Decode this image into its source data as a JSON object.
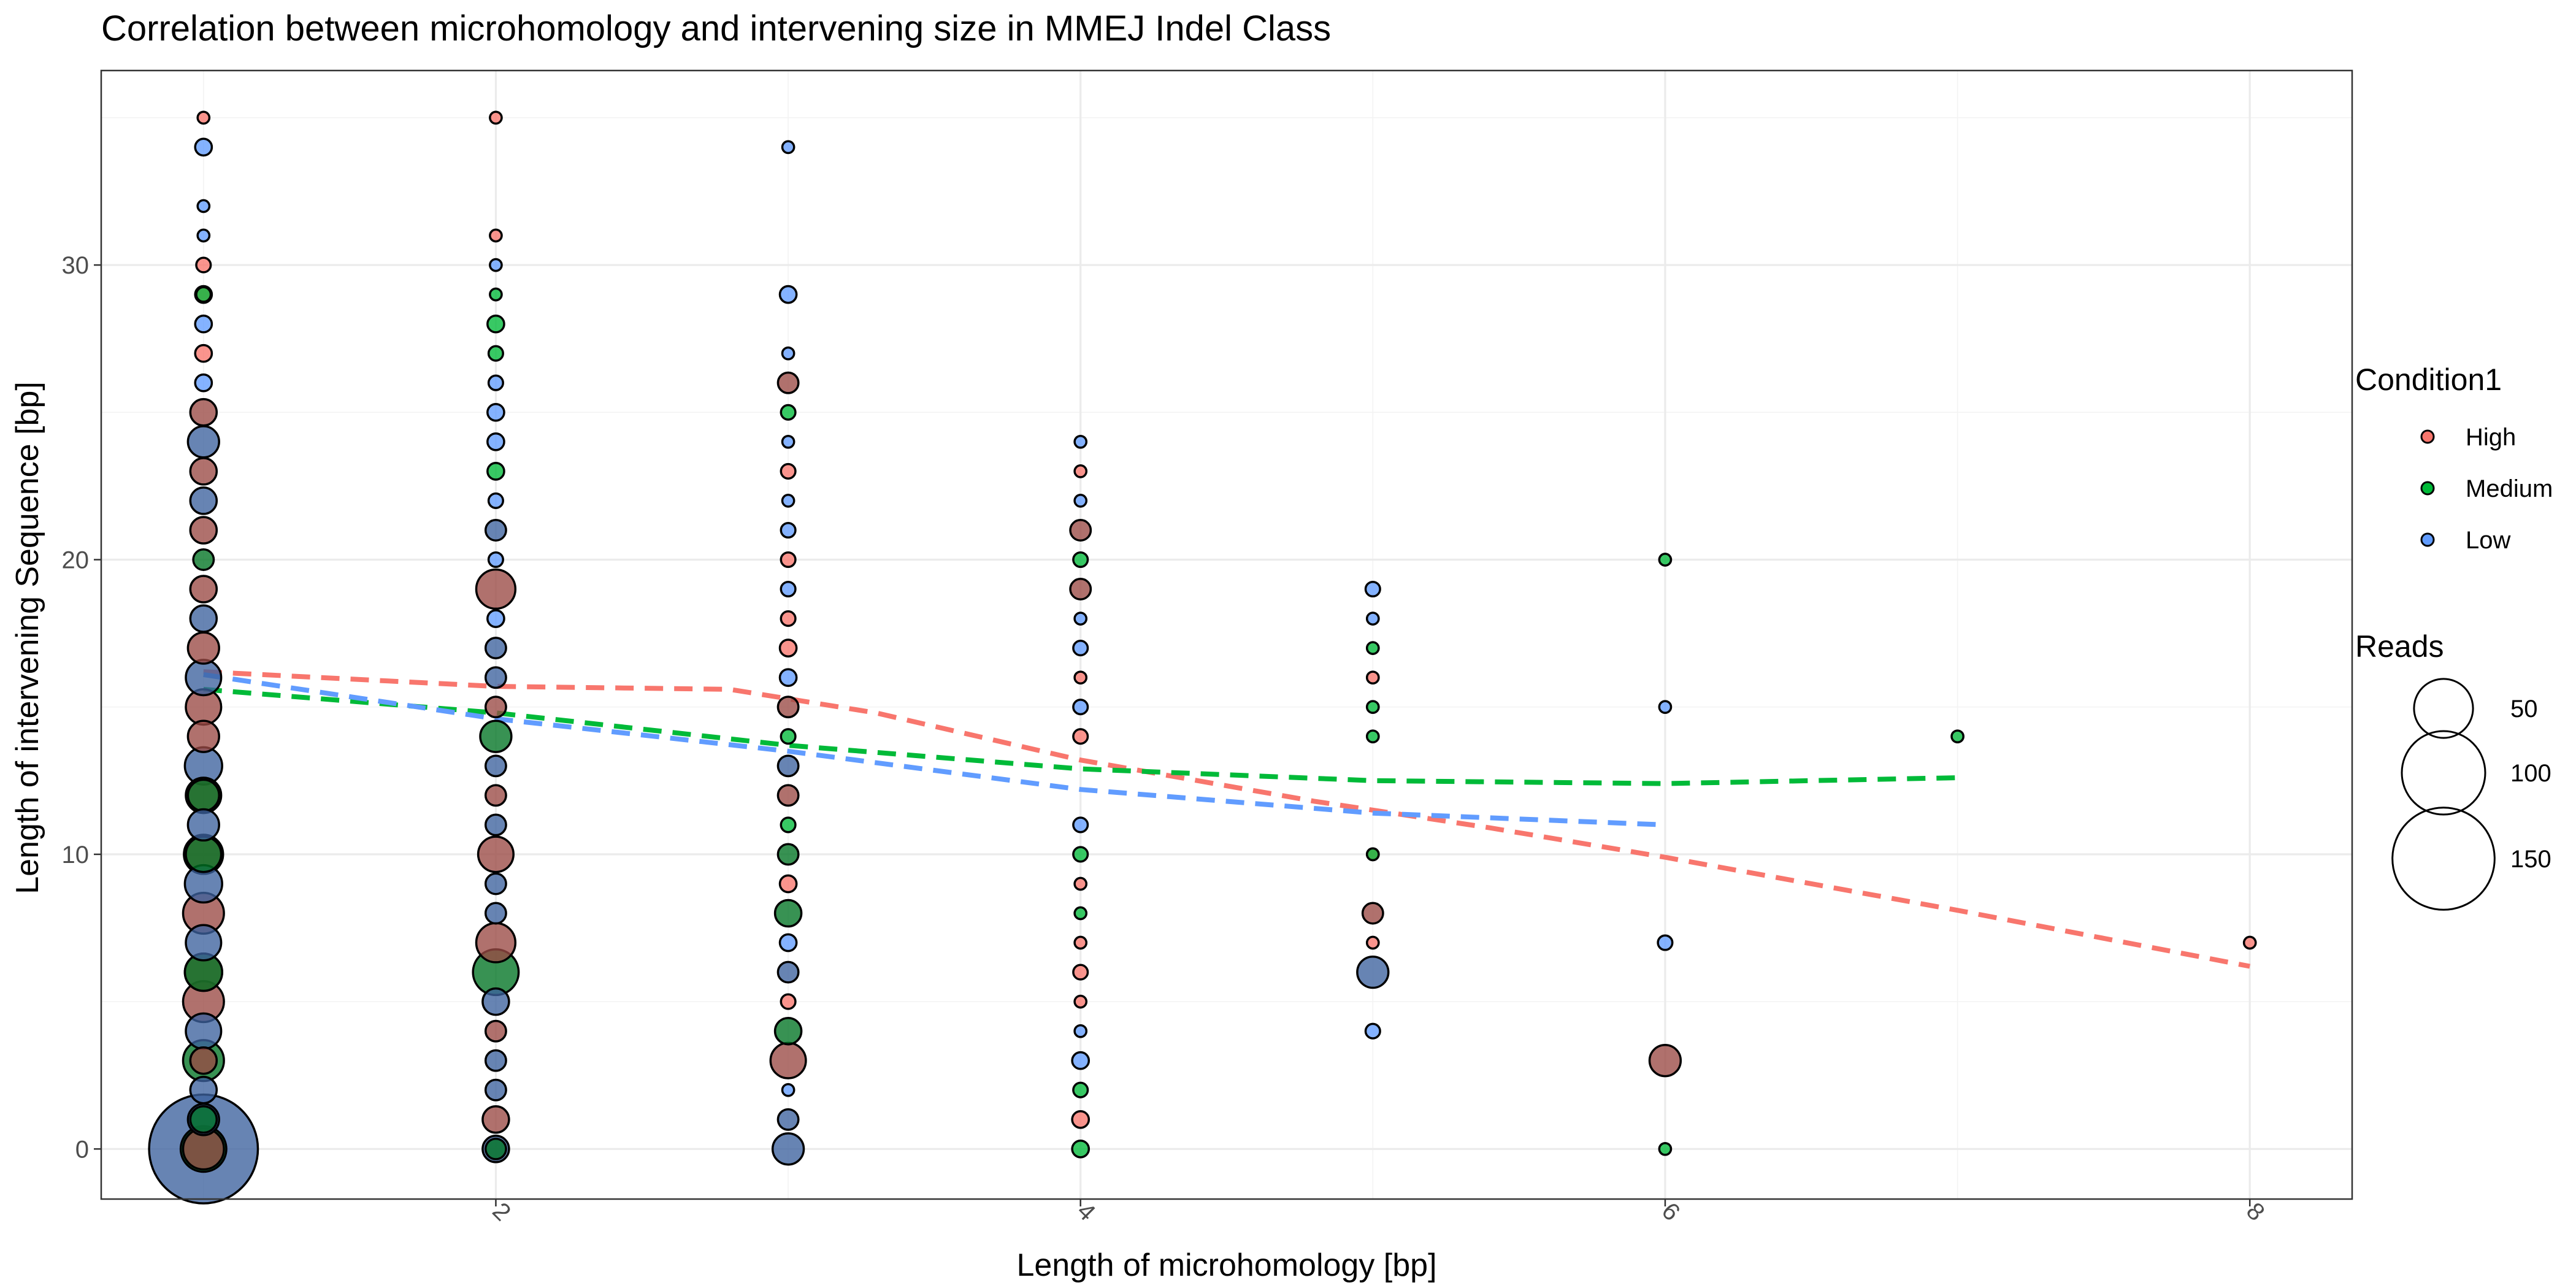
{
  "chart_data": {
    "type": "scatter",
    "title": "Correlation between microhomology and intervening size in MMEJ Indel Class",
    "xlabel": "Length of microhomology [bp]",
    "ylabel": "Length of intervening Sequence [bp]",
    "xlim": [
      0.65,
      8.35
    ],
    "ylim": [
      -1.7,
      36.6
    ],
    "x_ticks": [
      2,
      4,
      6,
      8
    ],
    "y_ticks": [
      0,
      10,
      20,
      30
    ],
    "grid": true,
    "legend_position": "right",
    "color_legend": {
      "title": "Condition1",
      "entries": [
        {
          "name": "High",
          "color": "#F8766D"
        },
        {
          "name": "Medium",
          "color": "#00BA38"
        },
        {
          "name": "Low",
          "color": "#619CFF"
        }
      ]
    },
    "size_legend": {
      "title": "Reads",
      "entries": [
        50,
        100,
        150
      ]
    },
    "series": [
      {
        "name": "High",
        "color": "#F8766D",
        "points": [
          {
            "x": 1,
            "y": 35,
            "reads": 2
          },
          {
            "x": 1,
            "y": 30,
            "reads": 3
          },
          {
            "x": 1,
            "y": 29,
            "reads": 4
          },
          {
            "x": 1,
            "y": 27,
            "reads": 4
          },
          {
            "x": 1,
            "y": 25,
            "reads": 10
          },
          {
            "x": 1,
            "y": 23,
            "reads": 10
          },
          {
            "x": 1,
            "y": 21,
            "reads": 10
          },
          {
            "x": 1,
            "y": 19,
            "reads": 10
          },
          {
            "x": 1,
            "y": 17,
            "reads": 14
          },
          {
            "x": 1,
            "y": 15,
            "reads": 18
          },
          {
            "x": 1,
            "y": 14,
            "reads": 14
          },
          {
            "x": 1,
            "y": 12,
            "reads": 18
          },
          {
            "x": 1,
            "y": 10,
            "reads": 22
          },
          {
            "x": 1,
            "y": 8,
            "reads": 24
          },
          {
            "x": 1,
            "y": 6,
            "reads": 20
          },
          {
            "x": 1,
            "y": 5,
            "reads": 24
          },
          {
            "x": 1,
            "y": 3,
            "reads": 10
          },
          {
            "x": 1,
            "y": 0,
            "reads": 24
          },
          {
            "x": 2,
            "y": 35,
            "reads": 2
          },
          {
            "x": 2,
            "y": 31,
            "reads": 2
          },
          {
            "x": 2,
            "y": 19,
            "reads": 22
          },
          {
            "x": 2,
            "y": 15,
            "reads": 6
          },
          {
            "x": 2,
            "y": 12,
            "reads": 6
          },
          {
            "x": 2,
            "y": 10,
            "reads": 18
          },
          {
            "x": 2,
            "y": 7,
            "reads": 22
          },
          {
            "x": 2,
            "y": 4,
            "reads": 6
          },
          {
            "x": 2,
            "y": 1,
            "reads": 10
          },
          {
            "x": 3,
            "y": 26,
            "reads": 6
          },
          {
            "x": 3,
            "y": 23,
            "reads": 3
          },
          {
            "x": 3,
            "y": 20,
            "reads": 3
          },
          {
            "x": 3,
            "y": 18,
            "reads": 3
          },
          {
            "x": 3,
            "y": 17,
            "reads": 4
          },
          {
            "x": 3,
            "y": 15,
            "reads": 6
          },
          {
            "x": 3,
            "y": 12,
            "reads": 6
          },
          {
            "x": 3,
            "y": 9,
            "reads": 4
          },
          {
            "x": 3,
            "y": 5,
            "reads": 3
          },
          {
            "x": 3,
            "y": 3,
            "reads": 18
          },
          {
            "x": 4,
            "y": 23,
            "reads": 2
          },
          {
            "x": 4,
            "y": 21,
            "reads": 6
          },
          {
            "x": 4,
            "y": 19,
            "reads": 6
          },
          {
            "x": 4,
            "y": 16,
            "reads": 2
          },
          {
            "x": 4,
            "y": 14,
            "reads": 3
          },
          {
            "x": 4,
            "y": 9,
            "reads": 2
          },
          {
            "x": 4,
            "y": 7,
            "reads": 2
          },
          {
            "x": 4,
            "y": 6,
            "reads": 3
          },
          {
            "x": 4,
            "y": 5,
            "reads": 2
          },
          {
            "x": 4,
            "y": 1,
            "reads": 4
          },
          {
            "x": 5,
            "y": 16,
            "reads": 2
          },
          {
            "x": 5,
            "y": 10,
            "reads": 2
          },
          {
            "x": 5,
            "y": 8,
            "reads": 6
          },
          {
            "x": 5,
            "y": 7,
            "reads": 2
          },
          {
            "x": 6,
            "y": 3,
            "reads": 14
          },
          {
            "x": 8,
            "y": 7,
            "reads": 2
          }
        ],
        "smooth": [
          {
            "x": 1,
            "y": 16.2
          },
          {
            "x": 2,
            "y": 15.7
          },
          {
            "x": 2.8,
            "y": 15.6
          },
          {
            "x": 3.3,
            "y": 14.8
          },
          {
            "x": 4,
            "y": 13.2
          },
          {
            "x": 4.8,
            "y": 11.8
          },
          {
            "x": 5.4,
            "y": 10.9
          },
          {
            "x": 6,
            "y": 9.9
          },
          {
            "x": 7,
            "y": 8.1
          },
          {
            "x": 8,
            "y": 6.2
          }
        ]
      },
      {
        "name": "Medium",
        "color": "#00BA38",
        "points": [
          {
            "x": 1,
            "y": 29,
            "reads": 3
          },
          {
            "x": 1,
            "y": 20,
            "reads": 6
          },
          {
            "x": 1,
            "y": 12,
            "reads": 14
          },
          {
            "x": 1,
            "y": 10,
            "reads": 18
          },
          {
            "x": 1,
            "y": 6,
            "reads": 20
          },
          {
            "x": 1,
            "y": 3,
            "reads": 24
          },
          {
            "x": 1,
            "y": 1,
            "reads": 10
          },
          {
            "x": 1,
            "y": 0,
            "reads": 30
          },
          {
            "x": 2,
            "y": 29,
            "reads": 2
          },
          {
            "x": 2,
            "y": 28,
            "reads": 4
          },
          {
            "x": 2,
            "y": 27,
            "reads": 3
          },
          {
            "x": 2,
            "y": 23,
            "reads": 4
          },
          {
            "x": 2,
            "y": 14,
            "reads": 14
          },
          {
            "x": 2,
            "y": 6,
            "reads": 30
          },
          {
            "x": 2,
            "y": 0,
            "reads": 6
          },
          {
            "x": 3,
            "y": 25,
            "reads": 3
          },
          {
            "x": 3,
            "y": 14,
            "reads": 3
          },
          {
            "x": 3,
            "y": 11,
            "reads": 3
          },
          {
            "x": 3,
            "y": 10,
            "reads": 6
          },
          {
            "x": 3,
            "y": 8,
            "reads": 10
          },
          {
            "x": 3,
            "y": 4,
            "reads": 10
          },
          {
            "x": 4,
            "y": 20,
            "reads": 3
          },
          {
            "x": 4,
            "y": 10,
            "reads": 3
          },
          {
            "x": 4,
            "y": 8,
            "reads": 2
          },
          {
            "x": 4,
            "y": 2,
            "reads": 3
          },
          {
            "x": 4,
            "y": 0,
            "reads": 4
          },
          {
            "x": 5,
            "y": 17,
            "reads": 2
          },
          {
            "x": 5,
            "y": 15,
            "reads": 2
          },
          {
            "x": 5,
            "y": 14,
            "reads": 2
          },
          {
            "x": 5,
            "y": 10,
            "reads": 2
          },
          {
            "x": 6,
            "y": 20,
            "reads": 2
          },
          {
            "x": 6,
            "y": 0,
            "reads": 2
          },
          {
            "x": 7,
            "y": 14,
            "reads": 2
          }
        ],
        "smooth": [
          {
            "x": 1,
            "y": 15.6
          },
          {
            "x": 2,
            "y": 14.8
          },
          {
            "x": 3,
            "y": 13.7
          },
          {
            "x": 4,
            "y": 12.9
          },
          {
            "x": 5,
            "y": 12.5
          },
          {
            "x": 6,
            "y": 12.4
          },
          {
            "x": 7,
            "y": 12.6
          }
        ]
      },
      {
        "name": "Low",
        "color": "#619CFF",
        "points": [
          {
            "x": 1,
            "y": 34,
            "reads": 4
          },
          {
            "x": 1,
            "y": 32,
            "reads": 2
          },
          {
            "x": 1,
            "y": 31,
            "reads": 2
          },
          {
            "x": 1,
            "y": 28,
            "reads": 4
          },
          {
            "x": 1,
            "y": 26,
            "reads": 4
          },
          {
            "x": 1,
            "y": 24,
            "reads": 14
          },
          {
            "x": 1,
            "y": 22,
            "reads": 10
          },
          {
            "x": 1,
            "y": 18,
            "reads": 10
          },
          {
            "x": 1,
            "y": 16,
            "reads": 18
          },
          {
            "x": 1,
            "y": 13,
            "reads": 20
          },
          {
            "x": 1,
            "y": 11,
            "reads": 14
          },
          {
            "x": 1,
            "y": 9,
            "reads": 20
          },
          {
            "x": 1,
            "y": 7,
            "reads": 18
          },
          {
            "x": 1,
            "y": 4,
            "reads": 18
          },
          {
            "x": 1,
            "y": 2,
            "reads": 10
          },
          {
            "x": 1,
            "y": 1,
            "reads": 14
          },
          {
            "x": 1,
            "y": 0,
            "reads": 170
          },
          {
            "x": 2,
            "y": 30,
            "reads": 2
          },
          {
            "x": 2,
            "y": 26,
            "reads": 3
          },
          {
            "x": 2,
            "y": 25,
            "reads": 4
          },
          {
            "x": 2,
            "y": 24,
            "reads": 4
          },
          {
            "x": 2,
            "y": 22,
            "reads": 3
          },
          {
            "x": 2,
            "y": 21,
            "reads": 6
          },
          {
            "x": 2,
            "y": 20,
            "reads": 3
          },
          {
            "x": 2,
            "y": 18,
            "reads": 4
          },
          {
            "x": 2,
            "y": 17,
            "reads": 6
          },
          {
            "x": 2,
            "y": 16,
            "reads": 6
          },
          {
            "x": 2,
            "y": 13,
            "reads": 6
          },
          {
            "x": 2,
            "y": 11,
            "reads": 6
          },
          {
            "x": 2,
            "y": 9,
            "reads": 6
          },
          {
            "x": 2,
            "y": 8,
            "reads": 6
          },
          {
            "x": 2,
            "y": 5,
            "reads": 10
          },
          {
            "x": 2,
            "y": 3,
            "reads": 6
          },
          {
            "x": 2,
            "y": 2,
            "reads": 6
          },
          {
            "x": 2,
            "y": 0,
            "reads": 10
          },
          {
            "x": 3,
            "y": 34,
            "reads": 2
          },
          {
            "x": 3,
            "y": 29,
            "reads": 4
          },
          {
            "x": 3,
            "y": 27,
            "reads": 2
          },
          {
            "x": 3,
            "y": 24,
            "reads": 2
          },
          {
            "x": 3,
            "y": 22,
            "reads": 2
          },
          {
            "x": 3,
            "y": 21,
            "reads": 3
          },
          {
            "x": 3,
            "y": 19,
            "reads": 3
          },
          {
            "x": 3,
            "y": 16,
            "reads": 4
          },
          {
            "x": 3,
            "y": 13,
            "reads": 6
          },
          {
            "x": 3,
            "y": 7,
            "reads": 4
          },
          {
            "x": 3,
            "y": 6,
            "reads": 6
          },
          {
            "x": 3,
            "y": 2,
            "reads": 2
          },
          {
            "x": 3,
            "y": 1,
            "reads": 6
          },
          {
            "x": 3,
            "y": 0,
            "reads": 14
          },
          {
            "x": 4,
            "y": 24,
            "reads": 2
          },
          {
            "x": 4,
            "y": 22,
            "reads": 2
          },
          {
            "x": 4,
            "y": 18,
            "reads": 2
          },
          {
            "x": 4,
            "y": 17,
            "reads": 3
          },
          {
            "x": 4,
            "y": 15,
            "reads": 3
          },
          {
            "x": 4,
            "y": 11,
            "reads": 3
          },
          {
            "x": 4,
            "y": 4,
            "reads": 2
          },
          {
            "x": 4,
            "y": 3,
            "reads": 4
          },
          {
            "x": 5,
            "y": 19,
            "reads": 3
          },
          {
            "x": 5,
            "y": 18,
            "reads": 2
          },
          {
            "x": 5,
            "y": 6,
            "reads": 14
          },
          {
            "x": 5,
            "y": 4,
            "reads": 3
          },
          {
            "x": 6,
            "y": 15,
            "reads": 2
          },
          {
            "x": 6,
            "y": 7,
            "reads": 3
          }
        ],
        "smooth": [
          {
            "x": 1,
            "y": 16.1
          },
          {
            "x": 2,
            "y": 14.6
          },
          {
            "x": 3,
            "y": 13.5
          },
          {
            "x": 4,
            "y": 12.2
          },
          {
            "x": 5,
            "y": 11.4
          },
          {
            "x": 6,
            "y": 11.0
          }
        ]
      }
    ]
  }
}
